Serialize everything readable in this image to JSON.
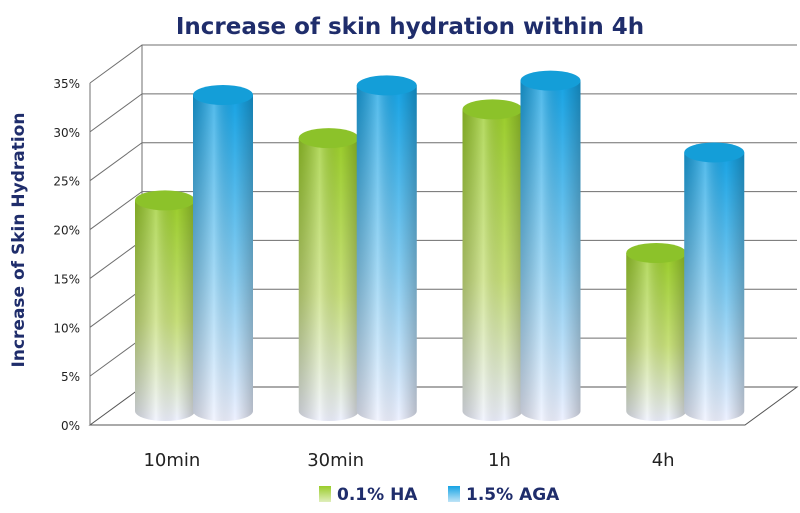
{
  "chart_data": {
    "type": "bar",
    "title": "Increase of skin hydration within 4h",
    "xlabel": "",
    "ylabel": "Increase of Skin Hydration",
    "categories": [
      "10min",
      "30min",
      "1h",
      "4h"
    ],
    "series": [
      {
        "name": "0.1% HA",
        "values": [
          22,
          28.5,
          31.5,
          16.5
        ]
      },
      {
        "name": "1.5% AGA",
        "values": [
          33,
          34,
          34.5,
          27
        ]
      }
    ],
    "ylim": [
      0,
      35
    ],
    "yticks": [
      "0%",
      "5%",
      "10%",
      "15%",
      "20%",
      "25%",
      "30%",
      "35%"
    ],
    "grid": true,
    "legend_position": "bottom",
    "colors": {
      "ha": "#8cc63f",
      "aga": "#1ca6e0",
      "title": "#1f2d6b"
    }
  }
}
